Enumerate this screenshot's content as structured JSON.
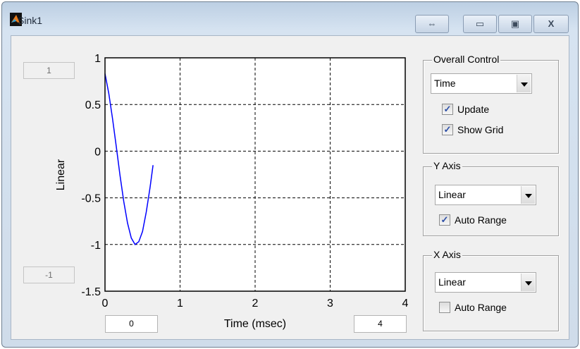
{
  "window": {
    "title": "Sink1",
    "buttons": {
      "dock": "⇔",
      "minimize": "▭",
      "maximize": "▣",
      "close": "X"
    }
  },
  "y_range": {
    "max": "1",
    "min": "-1"
  },
  "x_range": {
    "min": "0",
    "max": "4"
  },
  "overall_control": {
    "label": "Overall Control",
    "mode": "Time",
    "update_label": "Update",
    "update_checked": true,
    "grid_label": "Show Grid",
    "grid_checked": true
  },
  "y_axis": {
    "label": "Y Axis",
    "scale": "Linear",
    "auto_label": "Auto Range",
    "auto_checked": true
  },
  "x_axis": {
    "label": "X Axis",
    "scale": "Linear",
    "auto_label": "Auto Range",
    "auto_checked": false
  },
  "chart_data": {
    "type": "line",
    "xlabel": "Time (msec)",
    "ylabel": "Linear",
    "xlim": [
      0,
      4
    ],
    "ylim": [
      -1.5,
      1
    ],
    "grid": true,
    "xticks": [
      "0",
      "1",
      "2",
      "3",
      "4"
    ],
    "yticks": [
      "1",
      "0.5",
      "0",
      "-0.5",
      "-1",
      "-1.5"
    ],
    "series": [
      {
        "color": "#0000ff",
        "x": [
          0,
          0.05,
          0.1,
          0.15,
          0.2,
          0.25,
          0.3,
          0.35,
          0.4,
          0.45,
          0.5,
          0.55,
          0.6,
          0.64
        ],
        "y": [
          0.83,
          0.62,
          0.35,
          0.05,
          -0.26,
          -0.54,
          -0.77,
          -0.93,
          -1.0,
          -0.97,
          -0.86,
          -0.65,
          -0.39,
          -0.15
        ]
      }
    ]
  }
}
